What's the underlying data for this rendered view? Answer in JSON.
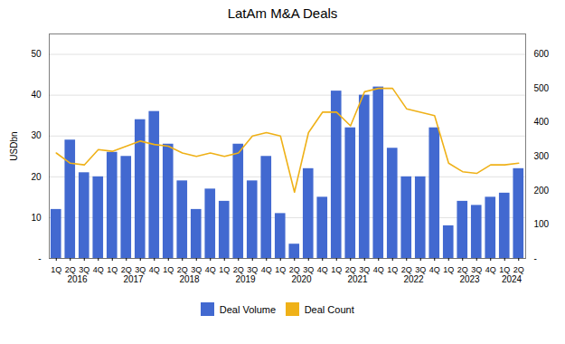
{
  "chart_data": {
    "type": "bar",
    "title": "LatAm M&A Deals",
    "categories": [
      "1Q",
      "2Q",
      "3Q",
      "4Q",
      "1Q",
      "2Q",
      "3Q",
      "4Q",
      "1Q",
      "2Q",
      "3Q",
      "4Q",
      "1Q",
      "2Q",
      "3Q",
      "4Q",
      "1Q",
      "2Q",
      "3Q",
      "4Q",
      "1Q",
      "2Q",
      "3Q",
      "4Q",
      "1Q",
      "2Q",
      "3Q",
      "4Q",
      "1Q",
      "2Q",
      "3Q",
      "4Q",
      "1Q",
      "2Q"
    ],
    "series": [
      {
        "name": "Deal Volume",
        "type": "bar",
        "values": [
          12,
          29,
          21,
          20,
          26,
          25,
          34,
          36,
          28,
          19,
          12,
          17,
          14,
          28,
          19,
          25,
          11,
          3.5,
          22,
          15,
          41,
          32,
          40,
          42,
          27,
          20,
          20,
          32,
          8,
          14,
          13,
          15,
          16,
          22
        ]
      },
      {
        "name": "Deal Count",
        "type": "line",
        "axis": "y2",
        "values": [
          310,
          280,
          275,
          320,
          315,
          330,
          345,
          335,
          330,
          310,
          300,
          310,
          300,
          310,
          360,
          370,
          360,
          195,
          370,
          430,
          430,
          390,
          490,
          500,
          500,
          440,
          430,
          420,
          280,
          255,
          250,
          275,
          275,
          280
        ]
      }
    ],
    "ylabel": "USDbn",
    "ylim": [
      0,
      55
    ],
    "yticks": [
      {
        "value": 0,
        "label": "-"
      },
      10,
      20,
      30,
      40,
      50
    ],
    "y2lim": [
      0,
      660
    ],
    "y2ticks": [
      {
        "value": 0,
        "label": "-"
      },
      100,
      200,
      300,
      400,
      500,
      600
    ],
    "grid": true,
    "legend": "bottom",
    "annotations": [
      {
        "text": "2016",
        "x": 1.5
      },
      {
        "text": "2017",
        "x": 5.5
      },
      {
        "text": "2018",
        "x": 9.5
      },
      {
        "text": "2019",
        "x": 13.5
      },
      {
        "text": "2020",
        "x": 17.5
      },
      {
        "text": "2021",
        "x": 21.5
      },
      {
        "text": "2022",
        "x": 25.5
      },
      {
        "text": "2023",
        "x": 29.5
      },
      {
        "text": "2024",
        "x": 32.5
      }
    ]
  }
}
